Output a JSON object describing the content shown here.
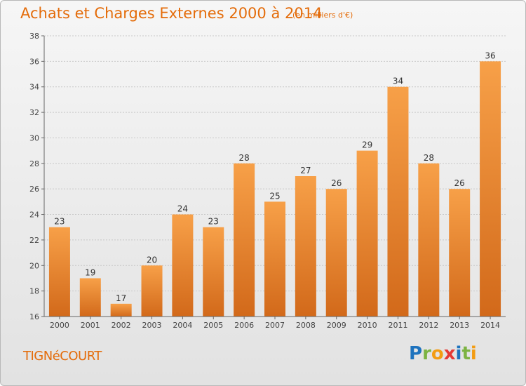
{
  "header": {
    "title": "Achats et Charges Externes 2000 à 2014",
    "unit": "(en milliers d'€)"
  },
  "footer": {
    "commune": "TIGNéCOURT",
    "brand": {
      "letters": [
        "P",
        "r",
        "o",
        "x",
        "i",
        "t",
        "i"
      ],
      "colors": [
        "#1e73be",
        "#7cb342",
        "#f39c12",
        "#e53935",
        "#1e73be",
        "#7cb342",
        "#f39c12"
      ]
    }
  },
  "colors": {
    "accent": "#e46c0a",
    "bar_top": "#f7a048",
    "bar_bottom": "#d2691a"
  },
  "chart_data": {
    "type": "bar",
    "categories": [
      "2000",
      "2001",
      "2002",
      "2003",
      "2004",
      "2005",
      "2006",
      "2007",
      "2008",
      "2009",
      "2010",
      "2011",
      "2012",
      "2013",
      "2014"
    ],
    "values": [
      23,
      19,
      17,
      20,
      24,
      23,
      28,
      25,
      27,
      26,
      29,
      34,
      28,
      26,
      36
    ],
    "ylim": [
      16,
      38
    ],
    "yticks": [
      16,
      18,
      20,
      22,
      24,
      26,
      28,
      30,
      32,
      34,
      36,
      38
    ],
    "grid": true,
    "legend": "none"
  }
}
